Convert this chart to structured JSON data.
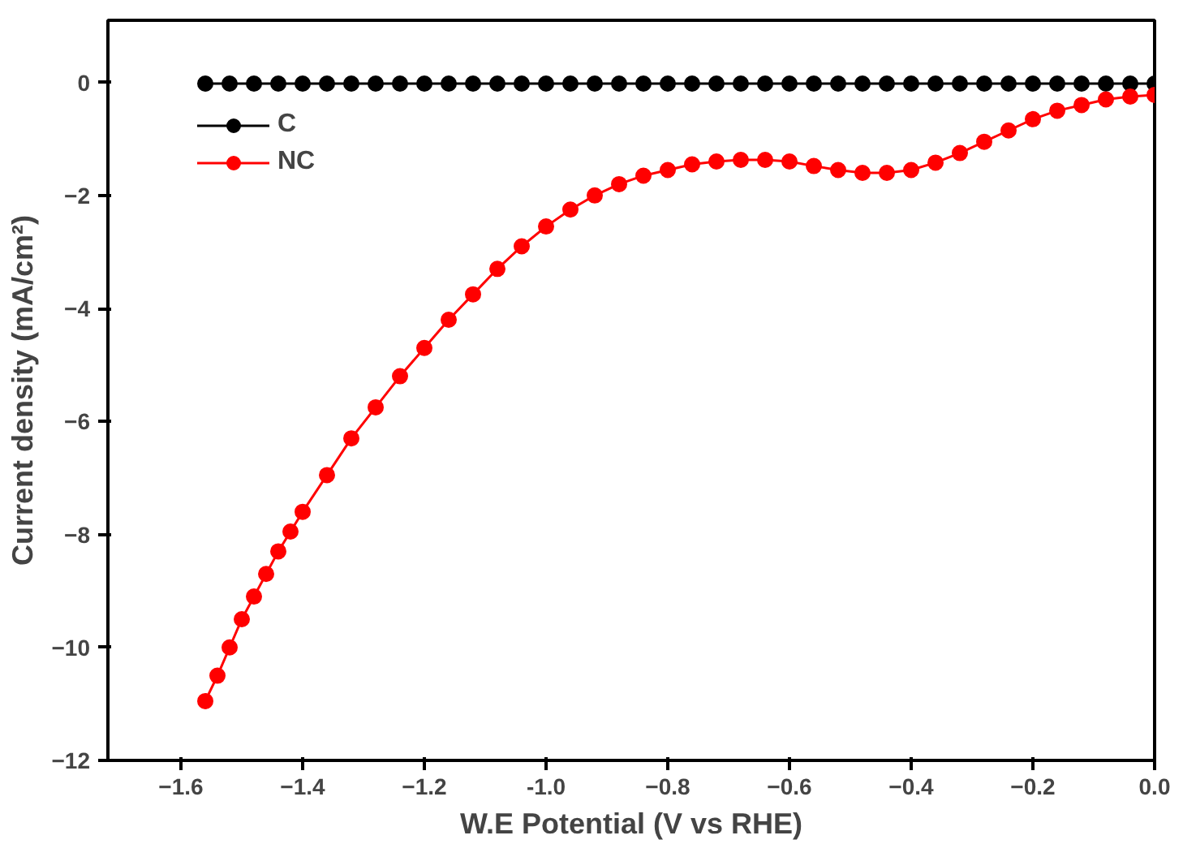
{
  "chart_data": {
    "type": "line",
    "xlabel": "W.E Potential (V vs RHE)",
    "ylabel": "Current density (mA/cm²)",
    "xlim": [
      -1.72,
      0.0
    ],
    "ylim": [
      -12,
      1.1
    ],
    "xticks": [
      -1.6,
      -1.4,
      -1.2,
      {
        "value": -1.0,
        "label": "-1.0"
      },
      -0.8,
      -0.6,
      -0.4,
      -0.2,
      {
        "value": 0.0,
        "label": "0.0"
      }
    ],
    "yticks": [
      0,
      -2,
      -4,
      -6,
      -8,
      -10,
      -12
    ],
    "grid": false,
    "legend": "top left",
    "marker": "circle",
    "line_style": "solid",
    "series": [
      {
        "name": "C",
        "color": "#000000",
        "x": [
          -1.56,
          -1.52,
          -1.48,
          -1.44,
          -1.4,
          -1.36,
          -1.32,
          -1.28,
          -1.24,
          -1.2,
          -1.16,
          -1.12,
          -1.08,
          -1.04,
          -1.0,
          -0.96,
          -0.92,
          -0.88,
          -0.84,
          -0.8,
          -0.76,
          -0.72,
          -0.68,
          -0.64,
          -0.6,
          -0.56,
          -0.52,
          -0.48,
          -0.44,
          -0.4,
          -0.36,
          -0.32,
          -0.28,
          -0.24,
          -0.2,
          -0.16,
          -0.12,
          -0.08,
          -0.04,
          0.0
        ],
        "values": [
          -0.02,
          -0.02,
          -0.02,
          -0.02,
          -0.02,
          -0.02,
          -0.02,
          -0.02,
          -0.02,
          -0.02,
          -0.02,
          -0.02,
          -0.02,
          -0.02,
          -0.02,
          -0.02,
          -0.02,
          -0.02,
          -0.02,
          -0.02,
          -0.02,
          -0.02,
          -0.02,
          -0.02,
          -0.02,
          -0.02,
          -0.02,
          -0.02,
          -0.02,
          -0.02,
          -0.02,
          -0.02,
          -0.02,
          -0.02,
          -0.02,
          -0.02,
          -0.02,
          -0.02,
          -0.02,
          -0.02
        ]
      },
      {
        "name": "NC",
        "color": "#ff0000",
        "x": [
          -1.56,
          -1.54,
          -1.52,
          -1.5,
          -1.48,
          -1.46,
          -1.44,
          -1.42,
          -1.4,
          -1.36,
          -1.32,
          -1.28,
          -1.24,
          -1.2,
          -1.16,
          -1.12,
          -1.08,
          -1.04,
          -1.0,
          -0.96,
          -0.92,
          -0.88,
          -0.84,
          -0.8,
          -0.76,
          -0.72,
          -0.68,
          -0.64,
          -0.6,
          -0.56,
          -0.52,
          -0.48,
          -0.44,
          -0.4,
          -0.36,
          -0.32,
          -0.28,
          -0.24,
          -0.2,
          -0.16,
          -0.12,
          -0.08,
          -0.04,
          0.0
        ],
        "values": [
          -10.95,
          -10.5,
          -10.0,
          -9.5,
          -9.1,
          -8.7,
          -8.3,
          -7.95,
          -7.6,
          -6.95,
          -6.3,
          -5.75,
          -5.2,
          -4.7,
          -4.2,
          -3.75,
          -3.3,
          -2.9,
          -2.55,
          -2.25,
          -2.0,
          -1.8,
          -1.65,
          -1.55,
          -1.45,
          -1.4,
          -1.37,
          -1.37,
          -1.4,
          -1.48,
          -1.55,
          -1.6,
          -1.6,
          -1.55,
          -1.42,
          -1.25,
          -1.05,
          -0.85,
          -0.65,
          -0.5,
          -0.4,
          -0.3,
          -0.25,
          -0.22
        ]
      }
    ]
  }
}
